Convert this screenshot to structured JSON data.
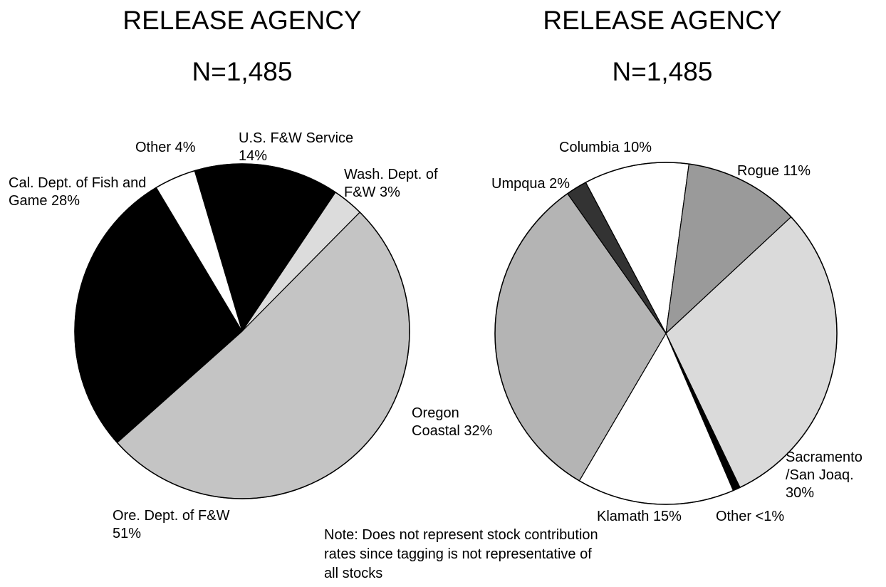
{
  "chart_data": [
    {
      "type": "pie",
      "title": "RELEASE AGENCY",
      "subtitle": "N=1,485",
      "categories": [
        "U.S. F&W Service",
        "Wash. Dept. of F&W",
        "Ore. Dept. of F&W",
        "Cal. Dept. of Fish and Game",
        "Other"
      ],
      "values": [
        14,
        3,
        51,
        28,
        4
      ],
      "value_labels": [
        "14%",
        "3%",
        "51%",
        "28%",
        "4%"
      ],
      "colors": [
        "#000000",
        "#dcdcdc",
        "#c4c4c4",
        "#000000",
        "#ffffff"
      ]
    },
    {
      "type": "pie",
      "title": "RELEASE AGENCY",
      "subtitle": "N=1,485",
      "categories": [
        "Columbia",
        "Rogue",
        "Sacramento /San Joaq.",
        "Other",
        "Klamath",
        "Oregon Coastal",
        "Umpqua"
      ],
      "values": [
        10,
        11,
        30,
        0.7,
        15,
        32,
        2
      ],
      "value_labels": [
        "10%",
        "11%",
        "30%",
        "<1%",
        "15%",
        "32%",
        "2%"
      ],
      "colors": [
        "#ffffff",
        "#9a9a9a",
        "#dadada",
        "#000000",
        "#ffffff",
        "#b4b4b4",
        "#333333"
      ]
    }
  ],
  "note": "Note:  Does not represent stock contribution rates since tagging is not representative of all stocks"
}
